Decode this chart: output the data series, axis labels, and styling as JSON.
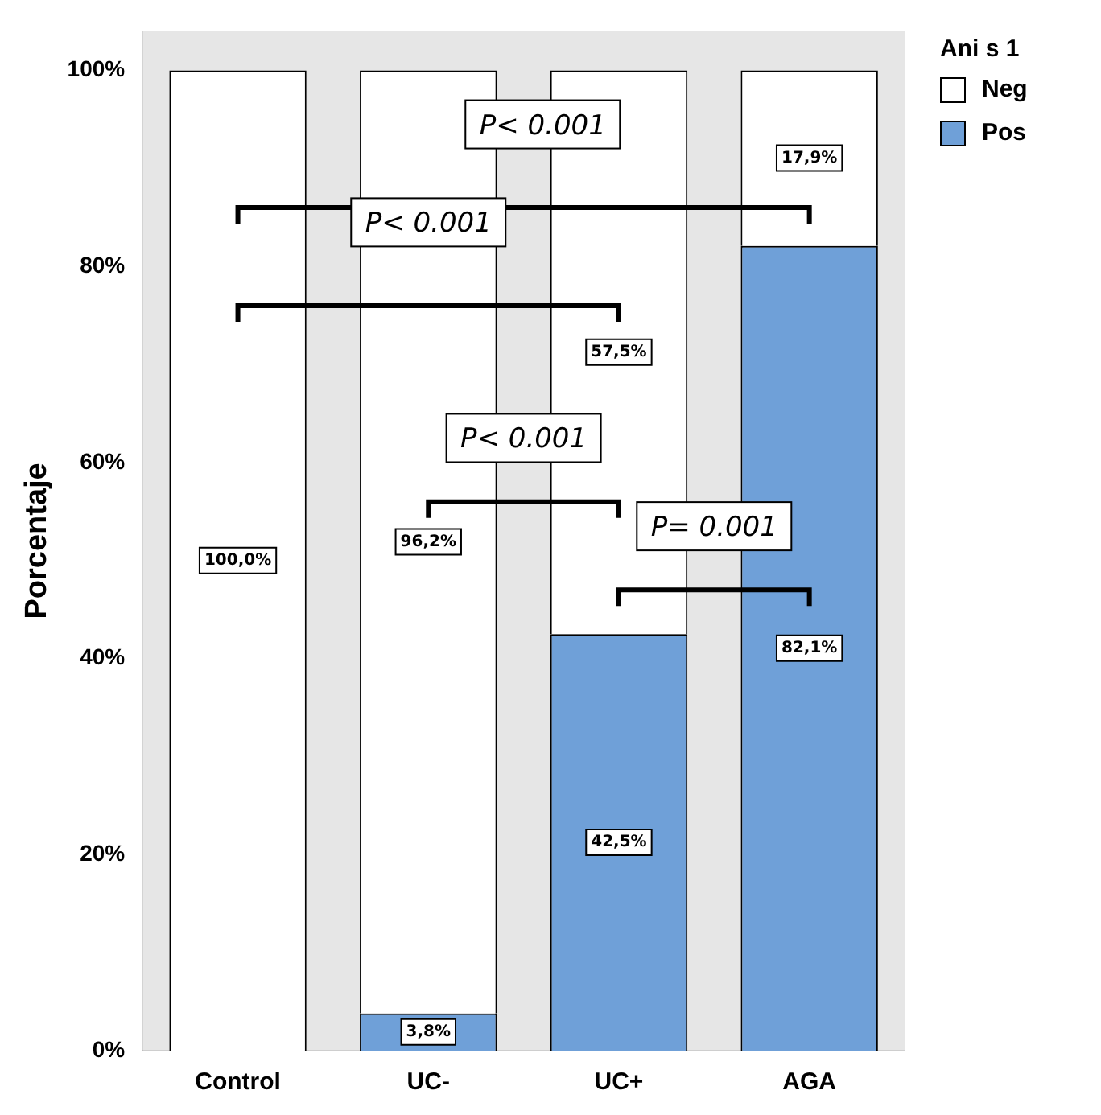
{
  "chart_data": {
    "type": "bar",
    "stacked": true,
    "categories": [
      "Control",
      "UC-",
      "UC+",
      "AGA"
    ],
    "series": [
      {
        "name": "Pos",
        "color": "#6fa0d8",
        "values": [
          0,
          3.8,
          42.5,
          82.1
        ],
        "value_labels": [
          null,
          "3,8%",
          "42,5%",
          "82,1%"
        ]
      },
      {
        "name": "Neg",
        "color": "#ffffff",
        "values": [
          100,
          96.2,
          57.5,
          17.9
        ],
        "value_labels": [
          "100,0%",
          "96,2%",
          "57,5%",
          "17,9%"
        ]
      }
    ],
    "ylabel": "Porcentaje",
    "legend_title": "Ani s 1",
    "legend": "top right",
    "grid": false,
    "ylim": [
      0,
      104
    ],
    "yticks": [
      {
        "value": 0,
        "label": "0%"
      },
      {
        "value": 20,
        "label": "20%"
      },
      {
        "value": 40,
        "label": "40%"
      },
      {
        "value": 60,
        "label": "60%"
      },
      {
        "value": 80,
        "label": "80%"
      },
      {
        "value": 100,
        "label": "100%"
      }
    ],
    "annotations": [
      "P< 0.001",
      "P< 0.001",
      "P< 0.001",
      "P= 0.001"
    ]
  }
}
